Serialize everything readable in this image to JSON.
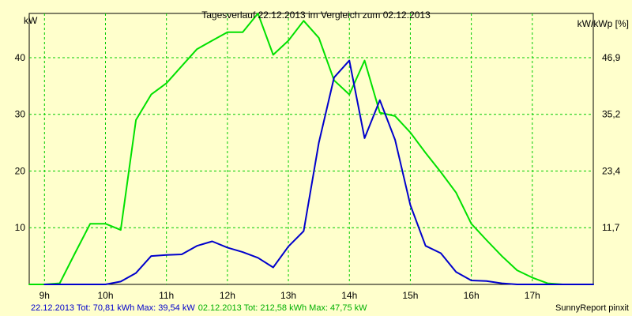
{
  "chart_data": {
    "type": "line",
    "title": "Tagesverlauf 22.12.2013 im Vergleich zum 02.12.2013",
    "ylabel_left": "kW",
    "ylabel_right": "kW/kWp [%]",
    "x_ticks": [
      "9h",
      "10h",
      "11h",
      "12h",
      "13h",
      "14h",
      "15h",
      "16h",
      "17h"
    ],
    "x_tick_values": [
      9,
      10,
      11,
      12,
      13,
      14,
      15,
      16,
      17
    ],
    "xlim": [
      8.75,
      18.0
    ],
    "ylim_left": [
      0,
      47.8
    ],
    "y_ticks_left": [
      "10",
      "20",
      "30",
      "40"
    ],
    "y_tick_values_left": [
      10,
      20,
      30,
      40
    ],
    "y_ticks_right": [
      "11,7",
      "23,4",
      "35,2",
      "46,9"
    ],
    "y_tick_values_right": [
      10,
      20,
      30,
      40
    ],
    "grid": true,
    "series": [
      {
        "name": "22.12.2013",
        "color": "#0000cc",
        "x": [
          9.0,
          9.25,
          9.5,
          9.75,
          10.0,
          10.25,
          10.5,
          10.75,
          11.0,
          11.25,
          11.5,
          11.75,
          12.0,
          12.25,
          12.5,
          12.75,
          13.0,
          13.25,
          13.5,
          13.75,
          14.0,
          14.25,
          14.5,
          14.75,
          15.0,
          15.25,
          15.5,
          15.75,
          16.0,
          16.25,
          16.5,
          16.75,
          17.0,
          17.25,
          17.5,
          17.75,
          18.0
        ],
        "values": [
          0,
          0,
          0,
          0,
          0,
          0.5,
          2,
          5,
          5.2,
          5.3,
          6.8,
          7.6,
          6.5,
          5.7,
          4.7,
          3,
          6.7,
          9.4,
          25,
          36.5,
          39.5,
          25.8,
          32.5,
          25.5,
          14,
          6.8,
          5.5,
          2.2,
          0.7,
          0.6,
          0.2,
          0,
          0,
          0,
          0,
          0,
          0
        ]
      },
      {
        "name": "02.12.2013",
        "color": "#00e000",
        "x": [
          8.75,
          9.0,
          9.25,
          9.5,
          9.75,
          10.0,
          10.25,
          10.5,
          10.75,
          11.0,
          11.25,
          11.5,
          11.75,
          12.0,
          12.25,
          12.5,
          12.75,
          13.0,
          13.25,
          13.5,
          13.75,
          14.0,
          14.25,
          14.5,
          14.75,
          15.0,
          15.25,
          15.5,
          15.75,
          16.0,
          16.25,
          16.5,
          16.75,
          17.0,
          17.25,
          17.5,
          17.75,
          18.0
        ],
        "values": [
          0,
          0,
          0.2,
          5.5,
          10.7,
          10.7,
          9.6,
          29,
          33.5,
          35.5,
          38.5,
          41.5,
          43,
          44.5,
          44.5,
          47.8,
          40.5,
          43,
          46.5,
          43.5,
          36,
          33.5,
          39.5,
          30.3,
          29.7,
          26.8,
          23.2,
          19.8,
          16.2,
          10.7,
          7.8,
          5,
          2.5,
          1.2,
          0.2,
          0,
          0,
          0
        ]
      }
    ]
  },
  "footer": {
    "series1_text": "22.12.2013 Tot: 70,81 kWh Max: 39,54 kW",
    "series2_text": "02.12.2013 Tot: 212,58 kWh Max: 47,75 kW",
    "brand": "SunnyReport pinxit"
  }
}
